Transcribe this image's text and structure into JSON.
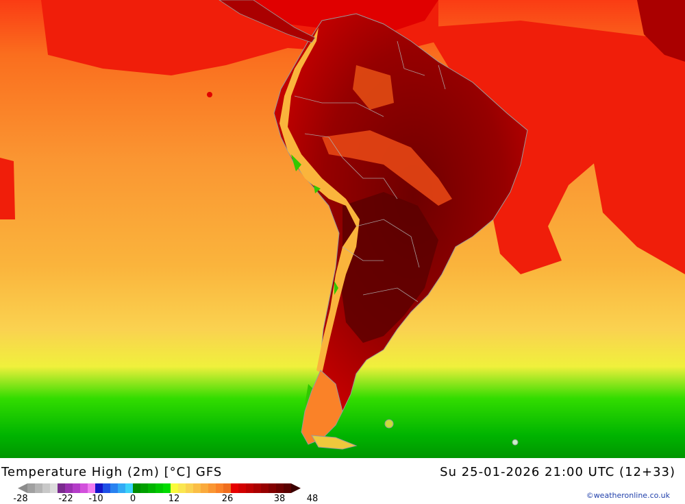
{
  "map": {
    "title": "Temperature High (2m) [°C] GFS",
    "datetime": "Su 25-01-2026 21:00 UTC (12+33)",
    "credit": "©weatheronline.co.uk",
    "legend": {
      "ticks": [
        "-28",
        "-22",
        "-10",
        "0",
        "12",
        "26",
        "38",
        "48"
      ],
      "colors": [
        "#a0a0a0",
        "#b4b4b4",
        "#c8c8c8",
        "#dcdcdc",
        "#7a2a8e",
        "#9a30b0",
        "#b43cc8",
        "#d250dc",
        "#f07cf0",
        "#1414c8",
        "#1e50e6",
        "#2882f0",
        "#32aaf5",
        "#3cd2fa",
        "#008c00",
        "#00a000",
        "#00b400",
        "#00c800",
        "#00dc00",
        "#fafa3c",
        "#fae650",
        "#fad250",
        "#fabe46",
        "#faaa3c",
        "#fa9632",
        "#fa8228",
        "#f06e1e",
        "#e60000",
        "#d20000",
        "#be0000",
        "#aa0000",
        "#960000",
        "#820000",
        "#6e0000",
        "#5a0000"
      ]
    }
  }
}
